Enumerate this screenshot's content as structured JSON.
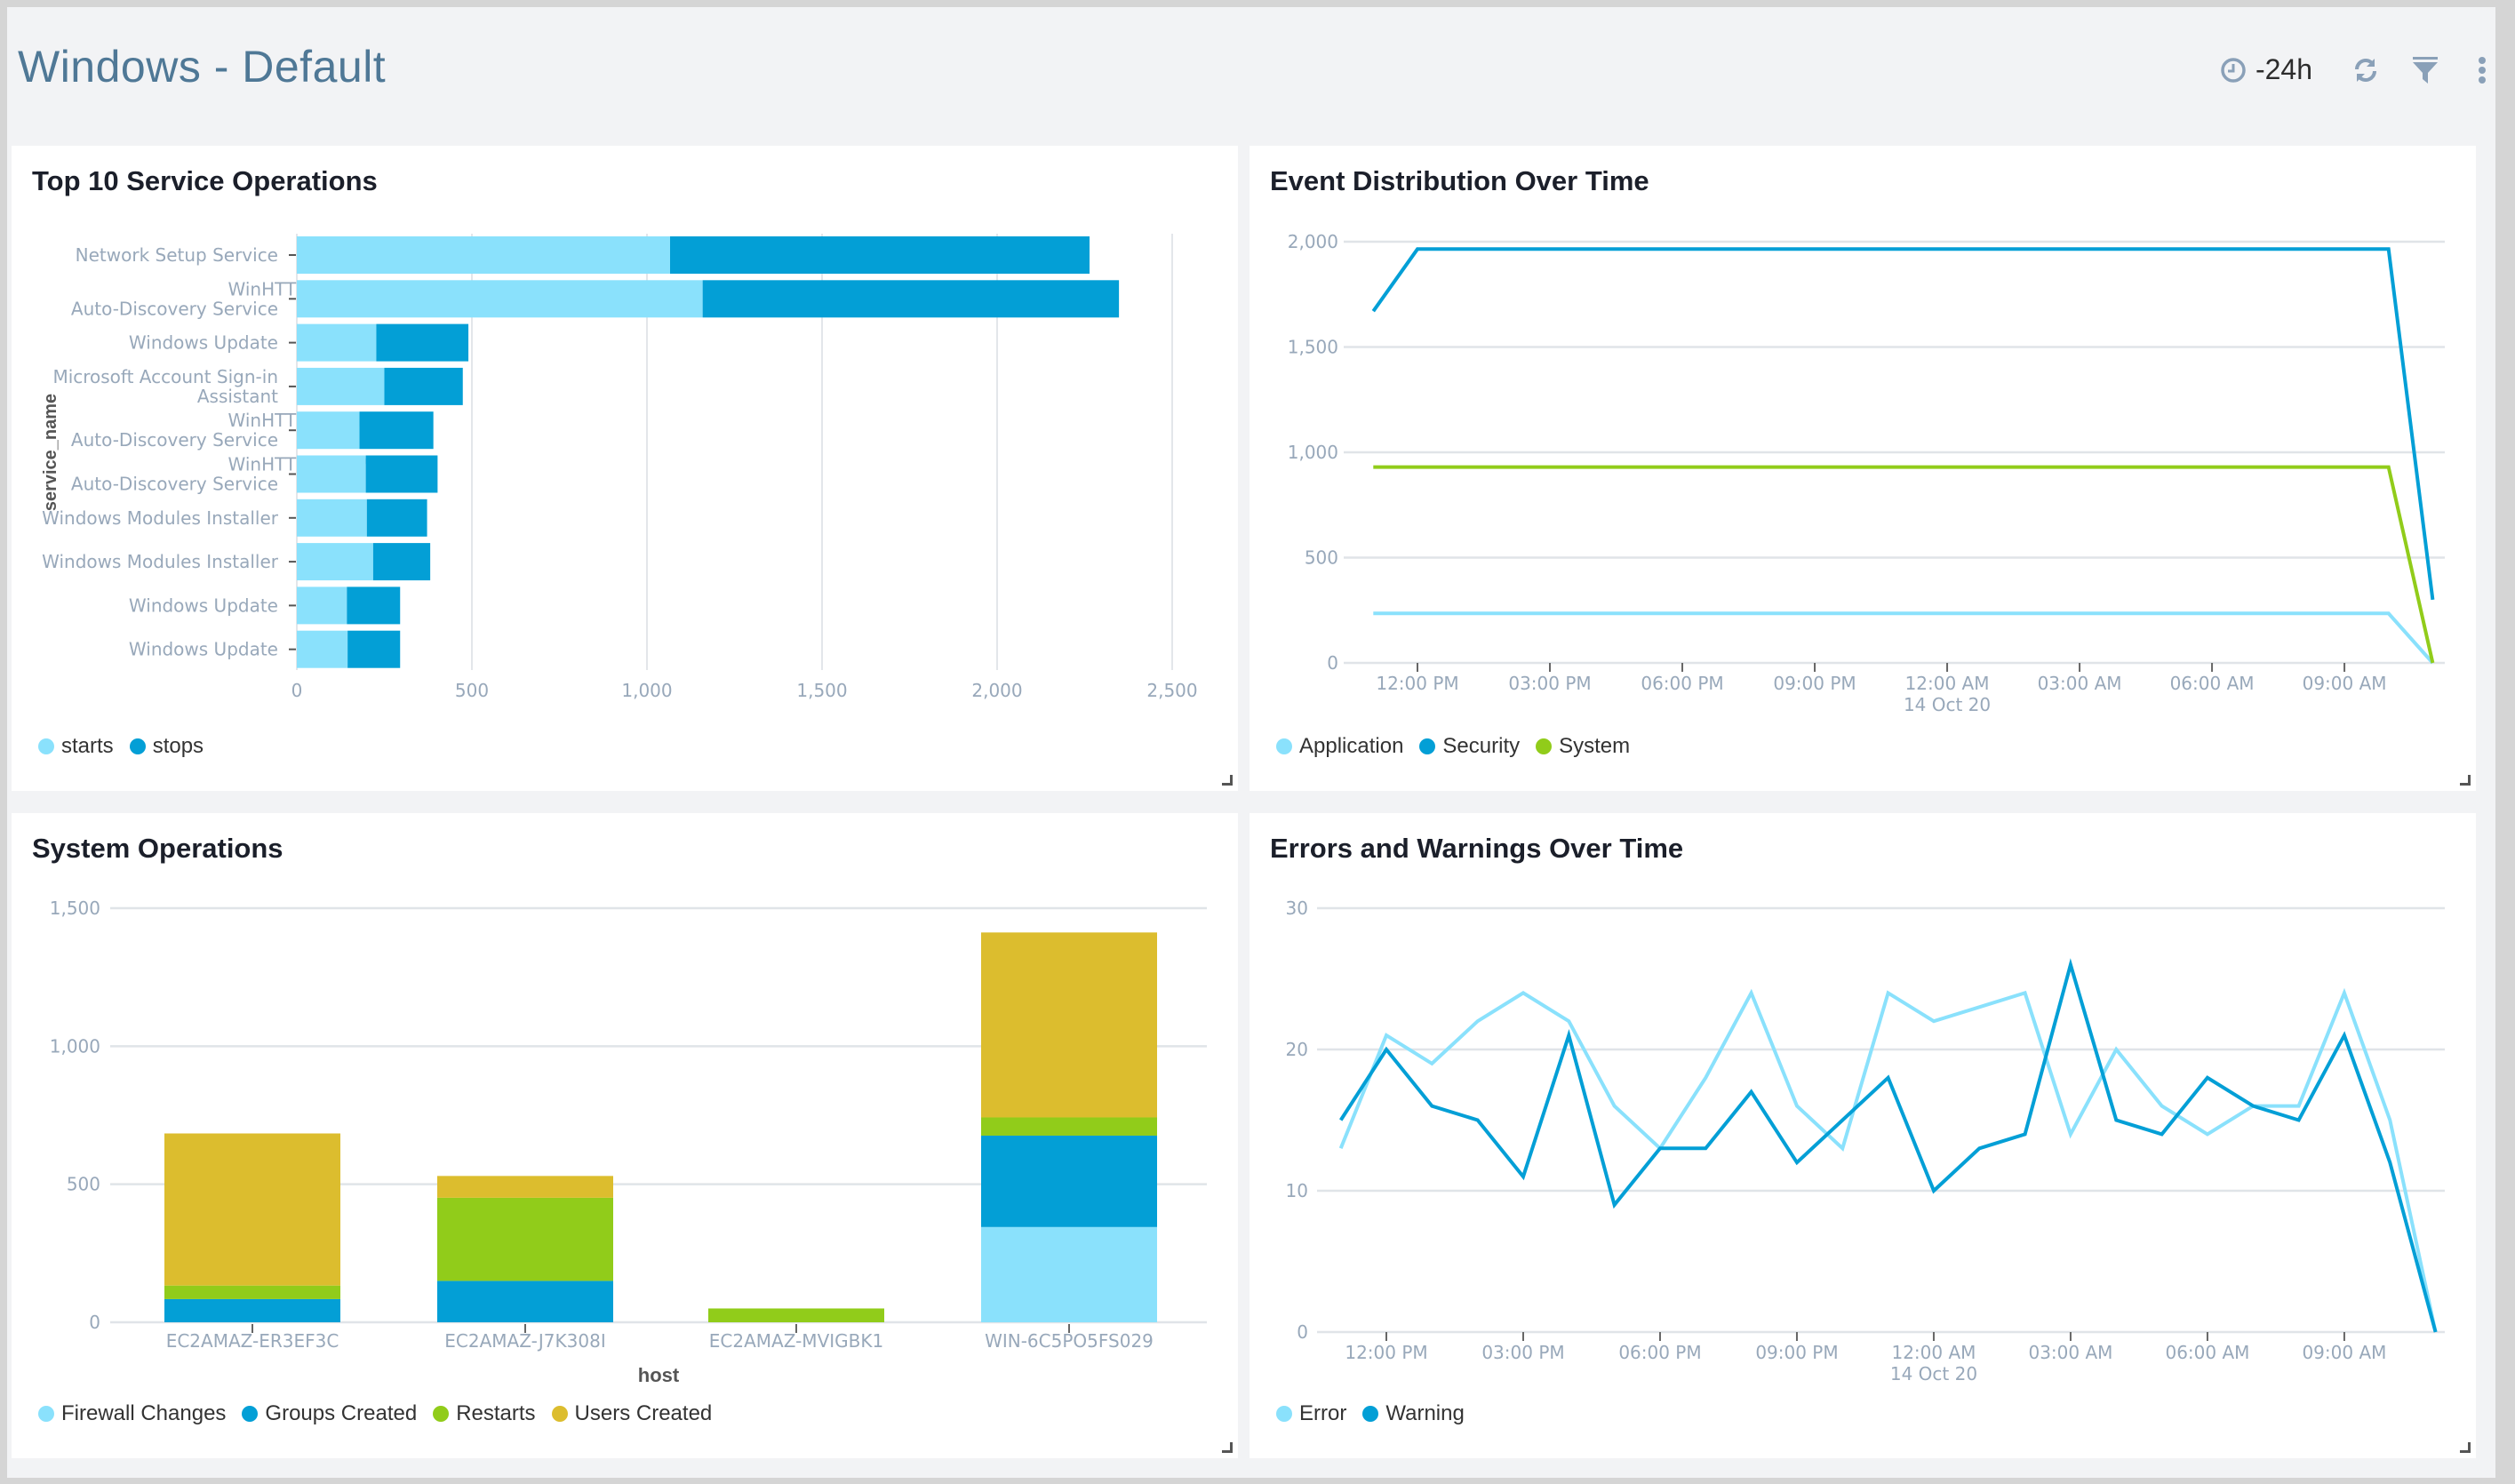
{
  "header": {
    "title": "Windows - Default",
    "time_range": "-24h",
    "icons": [
      "clock-icon",
      "refresh-icon",
      "filter-icon",
      "more-vert-icon"
    ]
  },
  "colors": {
    "light_blue": "#8ae1fc",
    "blue": "#039fd6",
    "green": "#91cc1a",
    "yellow": "#dcbd2e"
  },
  "panels": [
    {
      "title": "Top 10 Service Operations"
    },
    {
      "title": "Event Distribution Over Time"
    },
    {
      "title": "System Operations"
    },
    {
      "title": "Errors and Warnings Over Time"
    }
  ],
  "chart_data": [
    {
      "type": "bar",
      "orientation": "horizontal",
      "stacked": true,
      "title": "Top 10 Service Operations",
      "ylabel": "service_name",
      "xlim": [
        0,
        2500
      ],
      "xticks": [
        "0",
        "500",
        "1,000",
        "1,500",
        "2,000",
        "2,500"
      ],
      "categories": [
        [
          "Network Setup Service"
        ],
        [
          "WinHTTP Web Proxy",
          "Auto-Discovery Service"
        ],
        [
          "Windows Update"
        ],
        [
          "Microsoft Account Sign-in",
          "Assistant"
        ],
        [
          "WinHTTP Web Proxy",
          "Auto-Discovery Service"
        ],
        [
          "WinHTTP Web Proxy",
          "Auto-Discovery Service"
        ],
        [
          "Windows Modules Installer"
        ],
        [
          "Windows Modules Installer"
        ],
        [
          "Windows Update"
        ],
        [
          "Windows Update"
        ]
      ],
      "series": [
        {
          "name": "starts",
          "color": "#8ae1fc",
          "values": [
            1066,
            1159,
            227,
            250,
            179,
            197,
            200,
            218,
            143,
            145
          ]
        },
        {
          "name": "stops",
          "color": "#039fd6",
          "values": [
            1198,
            1189,
            263,
            224,
            211,
            205,
            172,
            163,
            152,
            150
          ]
        }
      ],
      "legend": "bottom-left",
      "grid": true
    },
    {
      "type": "line",
      "title": "Event Distribution Over Time",
      "ylim": [
        0,
        2000
      ],
      "yticks": [
        "0",
        "500",
        "1,000",
        "1,500",
        "2,000"
      ],
      "xticks": [
        [
          "12:00 PM"
        ],
        [
          "03:00 PM"
        ],
        [
          "06:00 PM"
        ],
        [
          "09:00 PM"
        ],
        [
          "12:00 AM",
          "14 Oct 20"
        ],
        [
          "03:00 AM"
        ],
        [
          "06:00 AM"
        ],
        [
          "09:00 AM"
        ]
      ],
      "x_start": "11:00 AM",
      "x_step_hours": 1,
      "series": [
        {
          "name": "Application",
          "color": "#8ae1fc",
          "values": [
            235,
            235,
            235,
            235,
            235,
            235,
            235,
            235,
            235,
            235,
            235,
            235,
            235,
            235,
            235,
            235,
            235,
            235,
            235,
            235,
            235,
            235,
            235,
            235,
            0
          ]
        },
        {
          "name": "Security",
          "color": "#039fd6",
          "values": [
            1670,
            1965,
            1965,
            1965,
            1965,
            1965,
            1965,
            1965,
            1965,
            1965,
            1965,
            1965,
            1965,
            1965,
            1965,
            1965,
            1965,
            1965,
            1965,
            1965,
            1965,
            1965,
            1965,
            1965,
            300
          ]
        },
        {
          "name": "System",
          "color": "#91cc1a",
          "values": [
            930,
            930,
            930,
            930,
            930,
            930,
            930,
            930,
            930,
            930,
            930,
            930,
            930,
            930,
            930,
            930,
            930,
            930,
            930,
            930,
            930,
            930,
            930,
            930,
            0
          ]
        }
      ],
      "legend": "bottom-left",
      "grid": true
    },
    {
      "type": "bar",
      "stacked": true,
      "title": "System Operations",
      "xlabel": "host",
      "ylim": [
        0,
        1500
      ],
      "yticks": [
        "0",
        "500",
        "1,000",
        "1,500"
      ],
      "categories": [
        "EC2AMAZ-ER3EF3C",
        "EC2AMAZ-J7K308I",
        "EC2AMAZ-MVIGBK1",
        "WIN-6C5PO5FS029"
      ],
      "series": [
        {
          "name": "Firewall Changes",
          "color": "#8ae1fc",
          "values": [
            0,
            0,
            0,
            345
          ]
        },
        {
          "name": "Groups Created",
          "color": "#039fd6",
          "values": [
            84,
            150,
            0,
            331
          ]
        },
        {
          "name": "Restarts",
          "color": "#91cc1a",
          "values": [
            49,
            301,
            50,
            66
          ]
        },
        {
          "name": "Users Created",
          "color": "#dcbd2e",
          "values": [
            551,
            79,
            0,
            670
          ]
        }
      ],
      "legend": "bottom-left",
      "grid": true
    },
    {
      "type": "line",
      "title": "Errors and Warnings Over Time",
      "ylim": [
        0,
        30
      ],
      "yticks": [
        "0",
        "10",
        "20",
        "30"
      ],
      "xticks": [
        [
          "12:00 PM"
        ],
        [
          "03:00 PM"
        ],
        [
          "06:00 PM"
        ],
        [
          "09:00 PM"
        ],
        [
          "12:00 AM",
          "14 Oct 20"
        ],
        [
          "03:00 AM"
        ],
        [
          "06:00 AM"
        ],
        [
          "09:00 AM"
        ]
      ],
      "x_start": "11:00 AM",
      "x_step_hours": 1,
      "series": [
        {
          "name": "Error",
          "color": "#8ae1fc",
          "values": [
            13,
            21,
            19,
            22,
            24,
            22,
            16,
            13,
            18,
            24,
            16,
            13,
            24,
            22,
            23,
            24,
            14,
            20,
            16,
            14,
            16,
            16,
            24,
            15,
            0
          ]
        },
        {
          "name": "Warning",
          "color": "#039fd6",
          "values": [
            15,
            20,
            16,
            15,
            11,
            21,
            9,
            13,
            13,
            17,
            12,
            15,
            18,
            10,
            13,
            14,
            26,
            15,
            14,
            18,
            16,
            15,
            21,
            12,
            0
          ]
        }
      ],
      "legend": "bottom-left",
      "grid": true
    }
  ]
}
